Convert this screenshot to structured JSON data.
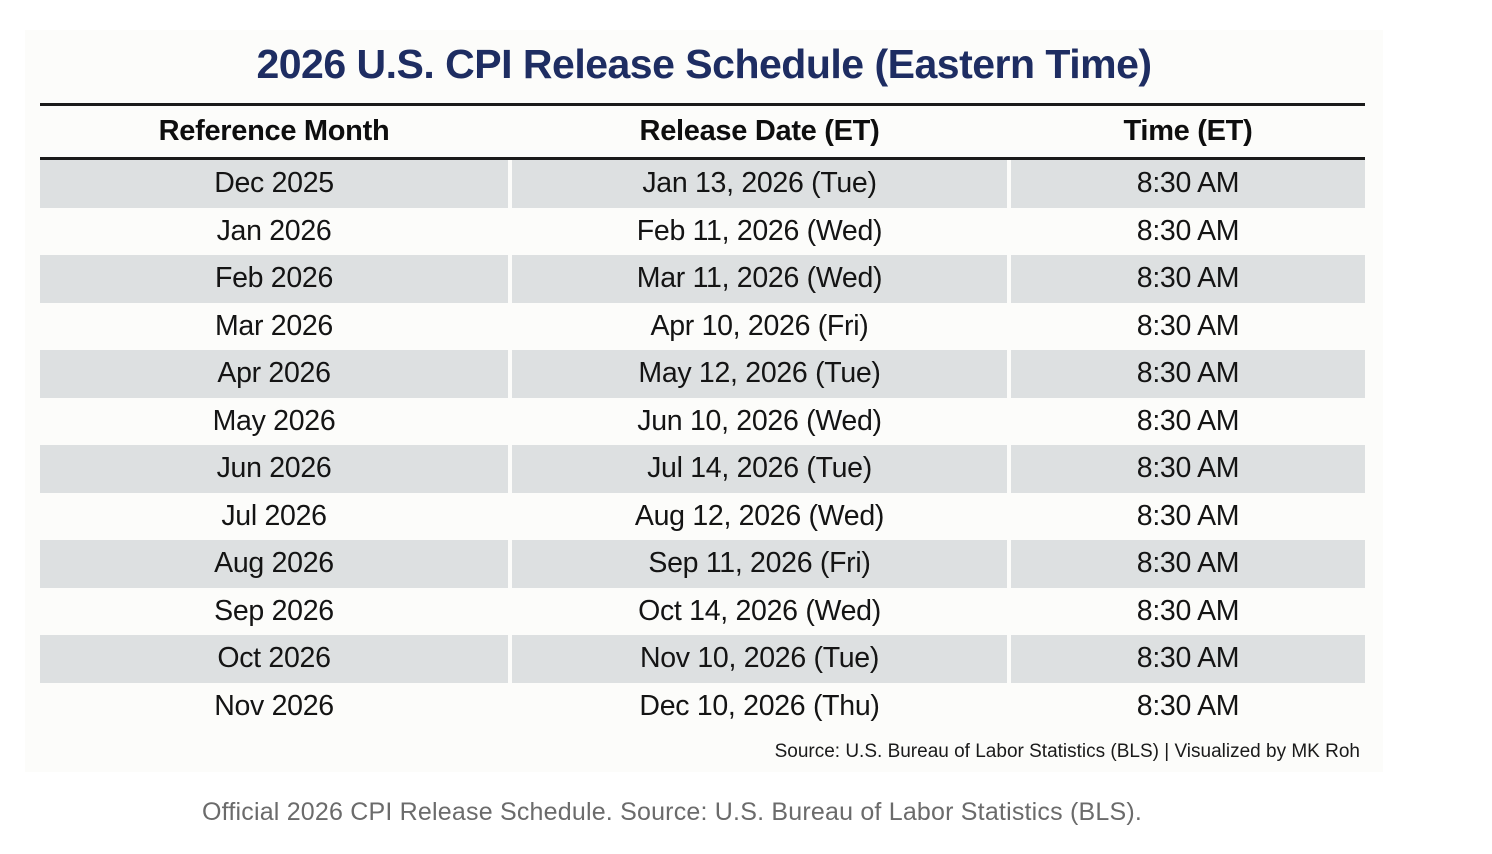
{
  "chart_data": {
    "type": "table",
    "title": "2026 U.S. CPI Release Schedule (Eastern Time)",
    "columns": [
      "Reference Month",
      "Release Date (ET)",
      "Time (ET)"
    ],
    "rows": [
      [
        "Dec 2025",
        "Jan 13, 2026 (Tue)",
        "8:30 AM"
      ],
      [
        "Jan 2026",
        "Feb 11, 2026 (Wed)",
        "8:30 AM"
      ],
      [
        "Feb 2026",
        "Mar 11, 2026 (Wed)",
        "8:30 AM"
      ],
      [
        "Mar 2026",
        "Apr 10, 2026 (Fri)",
        "8:30 AM"
      ],
      [
        "Apr 2026",
        "May 12, 2026 (Tue)",
        "8:30 AM"
      ],
      [
        "May 2026",
        "Jun 10, 2026 (Wed)",
        "8:30 AM"
      ],
      [
        "Jun 2026",
        "Jul 14, 2026 (Tue)",
        "8:30 AM"
      ],
      [
        "Jul 2026",
        "Aug 12, 2026 (Wed)",
        "8:30 AM"
      ],
      [
        "Aug 2026",
        "Sep 11, 2026 (Fri)",
        "8:30 AM"
      ],
      [
        "Sep 2026",
        "Oct 14, 2026 (Wed)",
        "8:30 AM"
      ],
      [
        "Oct 2026",
        "Nov 10, 2026 (Tue)",
        "8:30 AM"
      ],
      [
        "Nov 2026",
        "Dec 10, 2026 (Thu)",
        "8:30 AM"
      ]
    ],
    "layout_hints": {
      "striped_rows": "odd rows shaded",
      "header_rules": "black horizontal rules above and below header row",
      "cell_alignment": "center"
    }
  },
  "source_line": "Source: U.S. Bureau of Labor Statistics (BLS) | Visualized by MK Roh",
  "caption": "Official 2026 CPI Release Schedule. Source: U.S. Bureau of Labor Statistics (BLS).",
  "colors": {
    "title_navy": "#1e2d62",
    "row_stripe": "#dde0e1",
    "rule_black": "#1a1a1a",
    "caption_gray": "#6b6b6b",
    "card_background": "#fcfcfa"
  }
}
